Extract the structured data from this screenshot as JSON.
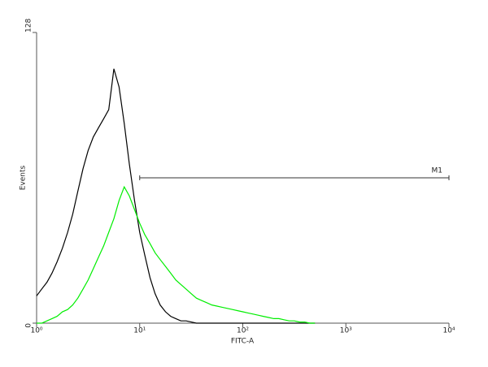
{
  "chart_data": {
    "type": "histogram-line",
    "xlabel": "FITC-A",
    "ylabel": "Events",
    "log_x": true,
    "xlim": [
      1,
      10000
    ],
    "xticks": [
      {
        "value": 1,
        "label": "10⁰"
      },
      {
        "value": 10,
        "label": "10¹"
      },
      {
        "value": 100,
        "label": "10²"
      },
      {
        "value": 1000,
        "label": "10³"
      },
      {
        "value": 10000,
        "label": "10⁴"
      }
    ],
    "ylim": [
      0,
      128
    ],
    "yticks": [
      0,
      128
    ],
    "x": [
      1,
      1.12,
      1.26,
      1.41,
      1.58,
      1.78,
      2,
      2.24,
      2.51,
      2.82,
      3.16,
      3.55,
      3.98,
      4.47,
      5.01,
      5.62,
      6.31,
      7.08,
      7.94,
      8.91,
      10,
      11.2,
      12.6,
      14.1,
      15.8,
      17.8,
      20,
      22.4,
      25.1,
      28.2,
      31.6,
      35.5,
      39.8,
      44.7,
      50.1,
      56.2,
      63.1,
      70.8,
      79.4,
      89.1,
      100,
      112,
      126,
      141,
      158,
      178,
      200,
      224,
      251,
      282,
      316,
      355,
      398,
      447,
      501
    ],
    "series": [
      {
        "color": "#000000",
        "values": [
          12,
          15,
          18,
          22,
          27,
          33,
          40,
          48,
          58,
          68,
          76,
          82,
          86,
          90,
          94,
          112,
          104,
          88,
          70,
          54,
          40,
          30,
          20,
          13,
          8,
          5,
          3,
          2,
          1,
          1,
          0.5,
          0,
          0,
          0,
          0,
          0,
          0,
          0,
          0,
          0,
          0,
          0,
          0,
          0,
          0,
          0,
          0,
          0,
          0,
          0,
          0,
          0,
          0,
          0,
          0
        ]
      },
      {
        "color": "#00ee00",
        "values": [
          0,
          0,
          1,
          2,
          3,
          5,
          6,
          8,
          11,
          15,
          19,
          24,
          29,
          34,
          40,
          46,
          54,
          60,
          56,
          50,
          44,
          39,
          35,
          31,
          28,
          25,
          22,
          19,
          17,
          15,
          13,
          11,
          10,
          9,
          8,
          7.5,
          7,
          6.5,
          6,
          5.5,
          5,
          4.5,
          4,
          3.5,
          3,
          2.5,
          2,
          2,
          1.5,
          1,
          1,
          0.5,
          0.5,
          0,
          0
        ]
      }
    ],
    "annotations": [
      {
        "label": "M1",
        "x": [
          10,
          10000
        ],
        "y": 64
      }
    ]
  }
}
